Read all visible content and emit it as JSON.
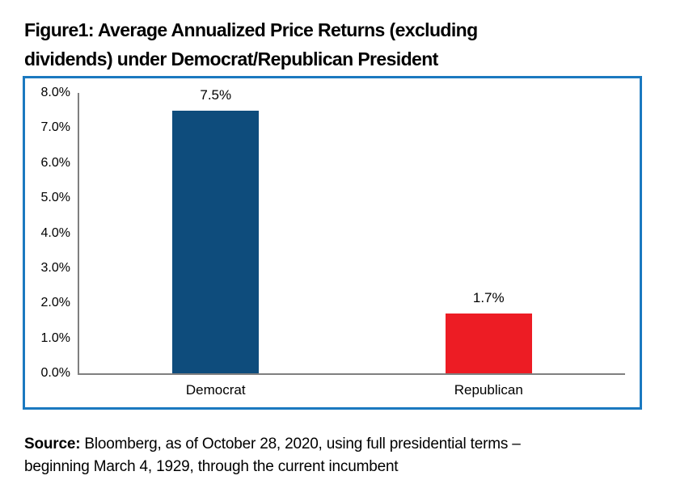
{
  "figure": {
    "title_line1": "Figure1: Average Annualized Price Returns (excluding",
    "title_line2": "dividends) under Democrat/Republican President",
    "source": {
      "label": "Source:",
      "line1_rest": " Bloomberg, as of October 28, 2020, using full presidential terms –",
      "line2": "beginning March 4, 1929, through the current incumbent"
    }
  },
  "chart_data": {
    "type": "bar",
    "title": "Figure1: Average Annualized Price Returns (excluding dividends) under Democrat/Republican President",
    "categories": [
      "Democrat",
      "Republican"
    ],
    "values": [
      7.5,
      1.7
    ],
    "value_labels": [
      "7.5%",
      "1.7%"
    ],
    "bar_colors": [
      "#0e4c7c",
      "#ed1c24"
    ],
    "xlabel": "",
    "ylabel": "",
    "ylim": [
      0,
      8
    ],
    "ytick_step": 1,
    "ytick_labels": [
      "0.0%",
      "1.0%",
      "2.0%",
      "3.0%",
      "4.0%",
      "5.0%",
      "6.0%",
      "7.0%",
      "8.0%"
    ],
    "grid": false,
    "legend": false,
    "axis_color": "#7f7f7f",
    "border_color": "#1b79c0",
    "label_color": "#000000"
  }
}
